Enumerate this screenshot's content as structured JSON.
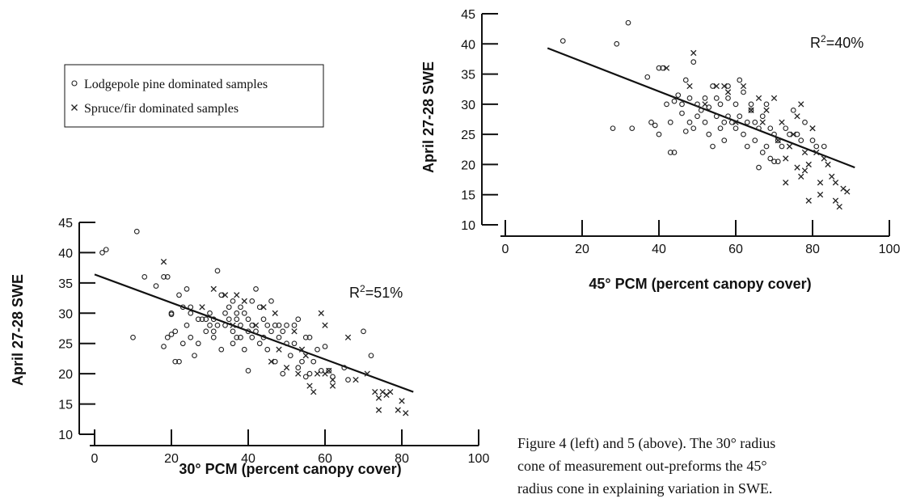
{
  "legend": {
    "items": [
      {
        "marker": "circle",
        "label": "Lodgepole pine dominated samples"
      },
      {
        "marker": "x",
        "label": "Spruce/fir dominated samples"
      }
    ]
  },
  "caption": {
    "lines": [
      "Figure 4 (left) and 5 (above). The 30° radius",
      "cone of measurement out-preforms the 45°",
      "radius cone in explaining variation in SWE."
    ]
  },
  "chart_data": [
    {
      "id": "figure-4",
      "type": "scatter",
      "title": "",
      "xlabel": "30° PCM (percent canopy cover)",
      "ylabel": "April 27-28 SWE",
      "xlim": [
        0,
        100
      ],
      "ylim": [
        10,
        45
      ],
      "xticks": [
        0,
        20,
        40,
        60,
        80,
        100
      ],
      "yticks": [
        10,
        15,
        20,
        25,
        30,
        35,
        40,
        45
      ],
      "annotation": {
        "text": "R",
        "sup": "2",
        "tail": "=51%",
        "x": 75,
        "y": 35
      },
      "fit_line": [
        {
          "x": 0,
          "y": 36.4
        },
        {
          "x": 83,
          "y": 17.0
        }
      ],
      "series": [
        {
          "name": "Lodgepole pine dominated samples",
          "marker": "circle",
          "points": [
            [
              2,
              40
            ],
            [
              3,
              40.5
            ],
            [
              10,
              26
            ],
            [
              11,
              43.5
            ],
            [
              13,
              36
            ],
            [
              16,
              34.5
            ],
            [
              18,
              36
            ],
            [
              19,
              36
            ],
            [
              18,
              24.5
            ],
            [
              19,
              26
            ],
            [
              20,
              26.5
            ],
            [
              20,
              30
            ],
            [
              20,
              29.8
            ],
            [
              21,
              22
            ],
            [
              22,
              22
            ],
            [
              21,
              27
            ],
            [
              22,
              33
            ],
            [
              23,
              31
            ],
            [
              23,
              25
            ],
            [
              24,
              28
            ],
            [
              24,
              34
            ],
            [
              25,
              30
            ],
            [
              25,
              26
            ],
            [
              25,
              31
            ],
            [
              26,
              23
            ],
            [
              27,
              29
            ],
            [
              27,
              25
            ],
            [
              28,
              29
            ],
            [
              29,
              29
            ],
            [
              29,
              27
            ],
            [
              30,
              28
            ],
            [
              30,
              30
            ],
            [
              31,
              26
            ],
            [
              31,
              27
            ],
            [
              31,
              29
            ],
            [
              32,
              37
            ],
            [
              32,
              28
            ],
            [
              33,
              24
            ],
            [
              33,
              33
            ],
            [
              34,
              28
            ],
            [
              34,
              30
            ],
            [
              35,
              29
            ],
            [
              35,
              31
            ],
            [
              36,
              32
            ],
            [
              36,
              25
            ],
            [
              36,
              27
            ],
            [
              37,
              26
            ],
            [
              37,
              29
            ],
            [
              37,
              30
            ],
            [
              38,
              31
            ],
            [
              38,
              26
            ],
            [
              38,
              28
            ],
            [
              39,
              30
            ],
            [
              39,
              24
            ],
            [
              40,
              20.5
            ],
            [
              40,
              27
            ],
            [
              40,
              29
            ],
            [
              41,
              32
            ],
            [
              41,
              26
            ],
            [
              41,
              28
            ],
            [
              42,
              34
            ],
            [
              42,
              27
            ],
            [
              43,
              25
            ],
            [
              43,
              31
            ],
            [
              44,
              29
            ],
            [
              44,
              26
            ],
            [
              45,
              28
            ],
            [
              45,
              24
            ],
            [
              46,
              32
            ],
            [
              46,
              27
            ],
            [
              47,
              22
            ],
            [
              47,
              28
            ],
            [
              48,
              26
            ],
            [
              48,
              28
            ],
            [
              49,
              20
            ],
            [
              49,
              27
            ],
            [
              50,
              25
            ],
            [
              50,
              28
            ],
            [
              51,
              23
            ],
            [
              52,
              25
            ],
            [
              52,
              28
            ],
            [
              53,
              21
            ],
            [
              53,
              29
            ],
            [
              54,
              22
            ],
            [
              55,
              26
            ],
            [
              55,
              19.5
            ],
            [
              56,
              20
            ],
            [
              56,
              26
            ],
            [
              57,
              22
            ],
            [
              58,
              24
            ],
            [
              59,
              20.5
            ],
            [
              60,
              24.5
            ],
            [
              61,
              20.5
            ],
            [
              62,
              19.5
            ],
            [
              65,
              21
            ],
            [
              66,
              19
            ],
            [
              70,
              27
            ],
            [
              72,
              23
            ]
          ]
        },
        {
          "name": "Spruce/fir dominated samples",
          "marker": "x",
          "points": [
            [
              18,
              38.5
            ],
            [
              28,
              31
            ],
            [
              31,
              34
            ],
            [
              34,
              33
            ],
            [
              36,
              28
            ],
            [
              37,
              33
            ],
            [
              39,
              32
            ],
            [
              42,
              28
            ],
            [
              44,
              31
            ],
            [
              46,
              22
            ],
            [
              47,
              30
            ],
            [
              48,
              24
            ],
            [
              50,
              21
            ],
            [
              52,
              27
            ],
            [
              53,
              20
            ],
            [
              54,
              24
            ],
            [
              55,
              23
            ],
            [
              56,
              18
            ],
            [
              57,
              17
            ],
            [
              58,
              20
            ],
            [
              59,
              30
            ],
            [
              60,
              28
            ],
            [
              60,
              20
            ],
            [
              61,
              20.5
            ],
            [
              62,
              19
            ],
            [
              62,
              18
            ],
            [
              66,
              26
            ],
            [
              68,
              19
            ],
            [
              71,
              20
            ],
            [
              73,
              17
            ],
            [
              74,
              16
            ],
            [
              74,
              14
            ],
            [
              75,
              17
            ],
            [
              76,
              16.5
            ],
            [
              77,
              17
            ],
            [
              79,
              14
            ],
            [
              80,
              15.5
            ],
            [
              81,
              13.5
            ]
          ]
        }
      ]
    },
    {
      "id": "figure-5",
      "type": "scatter",
      "title": "",
      "xlabel": "45° PCM (percent canopy cover)",
      "ylabel": "April 27-28 SWE",
      "xlim": [
        0,
        100
      ],
      "ylim": [
        10,
        45
      ],
      "xticks": [
        0,
        20,
        40,
        60,
        80,
        100
      ],
      "yticks": [
        10,
        15,
        20,
        25,
        30,
        35,
        40,
        45
      ],
      "annotation": {
        "text": "R",
        "sup": "2",
        "tail": "=40%",
        "x": 80,
        "y": 40
      },
      "fit_line": [
        {
          "x": 11,
          "y": 39.3
        },
        {
          "x": 91,
          "y": 19.5
        }
      ],
      "series": [
        {
          "name": "Lodgepole pine dominated samples",
          "marker": "circle",
          "points": [
            [
              15,
              40.5
            ],
            [
              28,
              26
            ],
            [
              29,
              40
            ],
            [
              32,
              43.5
            ],
            [
              33,
              26
            ],
            [
              37,
              34.5
            ],
            [
              38,
              27
            ],
            [
              39,
              26.5
            ],
            [
              40,
              25
            ],
            [
              40,
              36
            ],
            [
              41,
              36
            ],
            [
              42,
              30
            ],
            [
              43,
              22
            ],
            [
              43,
              27
            ],
            [
              44,
              22
            ],
            [
              44,
              30.5
            ],
            [
              45,
              31.5
            ],
            [
              46,
              28.5
            ],
            [
              46,
              30
            ],
            [
              47,
              25.5
            ],
            [
              47,
              34
            ],
            [
              48,
              27
            ],
            [
              48,
              31
            ],
            [
              49,
              26
            ],
            [
              49,
              37
            ],
            [
              50,
              30
            ],
            [
              50,
              28
            ],
            [
              51,
              29
            ],
            [
              52,
              31
            ],
            [
              52,
              27
            ],
            [
              53,
              29.5
            ],
            [
              53,
              25
            ],
            [
              54,
              23
            ],
            [
              54,
              33
            ],
            [
              55,
              31
            ],
            [
              55,
              28
            ],
            [
              56,
              26
            ],
            [
              56,
              30
            ],
            [
              57,
              27
            ],
            [
              57,
              24
            ],
            [
              58,
              31
            ],
            [
              58,
              28
            ],
            [
              58,
              33
            ],
            [
              59,
              27
            ],
            [
              60,
              30
            ],
            [
              60,
              26
            ],
            [
              61,
              28
            ],
            [
              61,
              34
            ],
            [
              62,
              25
            ],
            [
              62,
              32
            ],
            [
              63,
              27
            ],
            [
              63,
              23
            ],
            [
              64,
              29
            ],
            [
              64,
              30
            ],
            [
              65,
              27
            ],
            [
              65,
              24
            ],
            [
              66,
              26
            ],
            [
              66,
              19.5
            ],
            [
              67,
              28
            ],
            [
              67,
              22
            ],
            [
              68,
              23
            ],
            [
              68,
              30
            ],
            [
              69,
              26
            ],
            [
              69,
              21
            ],
            [
              70,
              25
            ],
            [
              70,
              20.5
            ],
            [
              71,
              24
            ],
            [
              71,
              20.5
            ],
            [
              72,
              23
            ],
            [
              73,
              26
            ],
            [
              74,
              25
            ],
            [
              75,
              29
            ],
            [
              76,
              25
            ],
            [
              77,
              24
            ],
            [
              78,
              27
            ],
            [
              80,
              24
            ],
            [
              81,
              23
            ],
            [
              83,
              23
            ]
          ]
        },
        {
          "name": "Spruce/fir dominated samples",
          "marker": "x",
          "points": [
            [
              42,
              36
            ],
            [
              48,
              33
            ],
            [
              49,
              38.5
            ],
            [
              52,
              30
            ],
            [
              55,
              33
            ],
            [
              57,
              33
            ],
            [
              58,
              32
            ],
            [
              60,
              27
            ],
            [
              62,
              33
            ],
            [
              64,
              29
            ],
            [
              66,
              31
            ],
            [
              67,
              27
            ],
            [
              68,
              29
            ],
            [
              70,
              31
            ],
            [
              71,
              24
            ],
            [
              72,
              27
            ],
            [
              73,
              21
            ],
            [
              73,
              17
            ],
            [
              74,
              23
            ],
            [
              75,
              25
            ],
            [
              76,
              19.5
            ],
            [
              76,
              28
            ],
            [
              77,
              18
            ],
            [
              77,
              30
            ],
            [
              78,
              22
            ],
            [
              78,
              19
            ],
            [
              79,
              20
            ],
            [
              79,
              14
            ],
            [
              80,
              26
            ],
            [
              81,
              22
            ],
            [
              82,
              17
            ],
            [
              82,
              15
            ],
            [
              83,
              21
            ],
            [
              84,
              20
            ],
            [
              85,
              18
            ],
            [
              86,
              14
            ],
            [
              86,
              17
            ],
            [
              87,
              13
            ],
            [
              88,
              16
            ],
            [
              89,
              15.5
            ]
          ]
        }
      ]
    }
  ]
}
